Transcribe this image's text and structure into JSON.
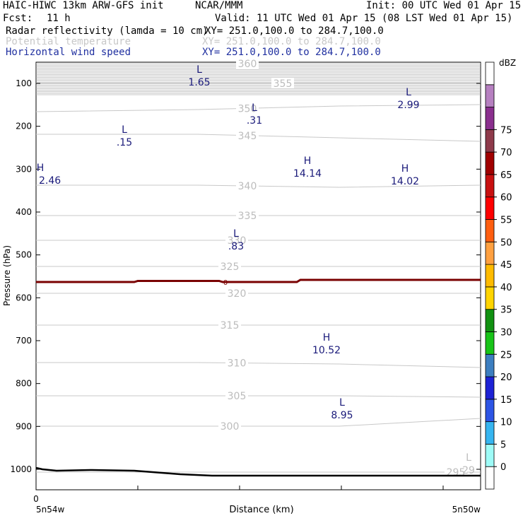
{
  "header": {
    "model": "HAIC-HIWC 13km ARW-GFS init",
    "center": "NCAR/MMM",
    "init": "Init: 00 UTC Wed 01 Apr 15",
    "fcst_label": "Fcst:",
    "fcst_value": "11 h",
    "valid": "Valid: 11 UTC Wed 01 Apr 15 (08 LST Wed 01 Apr 15)",
    "fields": [
      {
        "name": "Radar reflectivity (lamda = 10 cm)",
        "xy": "XY= 251.0,100.0 to 284.7,100.0",
        "color": "#000000"
      },
      {
        "name": "Potential temperature",
        "xy": "XY= 251.0,100.0 to 284.7,100.0",
        "color": "#c8c8c8"
      },
      {
        "name": "Horizontal wind speed",
        "xy": "XY= 251.0,100.0 to 284.7,100.0",
        "color": "#2030a0"
      }
    ]
  },
  "chart_data": {
    "type": "contour",
    "yaxis": {
      "label": "Pressure (hPa)",
      "ticks": [
        100,
        200,
        300,
        400,
        500,
        600,
        700,
        800,
        900,
        1000
      ],
      "range": [
        50,
        1050
      ],
      "scale": "linear",
      "inverted": true
    },
    "xaxis": {
      "label": "Distance (km)",
      "tick0_label": "0",
      "left_label": "5n54w",
      "right_label": "5n50w",
      "range": [
        0,
        1
      ]
    },
    "colorbar": {
      "unit": "dBZ",
      "levels": [
        0,
        5,
        10,
        15,
        20,
        25,
        30,
        35,
        40,
        45,
        50,
        55,
        60,
        65,
        70,
        75
      ],
      "colors": [
        "#ffffff",
        "#9efbf7",
        "#36b5f0",
        "#2d55e5",
        "#1d22d5",
        "#3c7ec0",
        "#18c418",
        "#119111",
        "#ffd400",
        "#ffbb00",
        "#ffa040",
        "#ff5e10",
        "#ff0000",
        "#c81010",
        "#a00000",
        "#8e3a4a",
        "#8a2f8e",
        "#b680c0",
        "#ffffff"
      ]
    },
    "theta_contours": [
      {
        "label": "360",
        "y": [
          90,
          90,
          90,
          90
        ]
      },
      {
        "label": "355",
        "y": [
          118,
          118,
          118,
          118
        ]
      },
      {
        "label": "350",
        "y": [
          158,
          155,
          150,
          148
        ]
      },
      {
        "label": "345",
        "y": [
          190,
          190,
          195,
          200
        ]
      },
      {
        "label": "340",
        "y": [
          262,
          262,
          265,
          262
        ]
      },
      {
        "label": "335",
        "y": [
          305,
          305,
          305,
          305
        ]
      },
      {
        "label": "330",
        "y": [
          340,
          340,
          340,
          340
        ]
      },
      {
        "label": "325",
        "y": [
          377,
          377,
          377,
          377
        ]
      },
      {
        "label": "320",
        "y": [
          415,
          415,
          415,
          415
        ]
      },
      {
        "label": "315",
        "y": [
          460,
          460,
          460,
          460
        ]
      },
      {
        "label": "310",
        "y": [
          513,
          513,
          515,
          520
        ]
      },
      {
        "label": "305",
        "y": [
          560,
          560,
          560,
          562
        ]
      },
      {
        "label": "300",
        "y": [
          603,
          603,
          603,
          592
        ]
      },
      {
        "label": "295",
        "y": [
          668,
          668,
          668,
          668
        ]
      }
    ],
    "freezing_level": {
      "label": "0"
    },
    "extrema": [
      {
        "type": "L",
        "value": "1.65"
      },
      {
        "type": "L",
        "value": "2.99"
      },
      {
        "type": "L",
        "value": ".31"
      },
      {
        "type": "L",
        "value": ".15"
      },
      {
        "type": "H",
        "value": "2.46"
      },
      {
        "type": "H",
        "value": "14.14"
      },
      {
        "type": "H",
        "value": "14.02"
      },
      {
        "type": "L",
        "value": ".83"
      },
      {
        "type": "H",
        "value": "10.52"
      },
      {
        "type": "L",
        "value": "8.95"
      },
      {
        "type": "L",
        "value": "29"
      }
    ],
    "colors": {
      "theta": "#c8c8c8",
      "wind_labels": "#1a1a7a",
      "freezing": "#7a0000",
      "terrain": "#000000"
    }
  }
}
